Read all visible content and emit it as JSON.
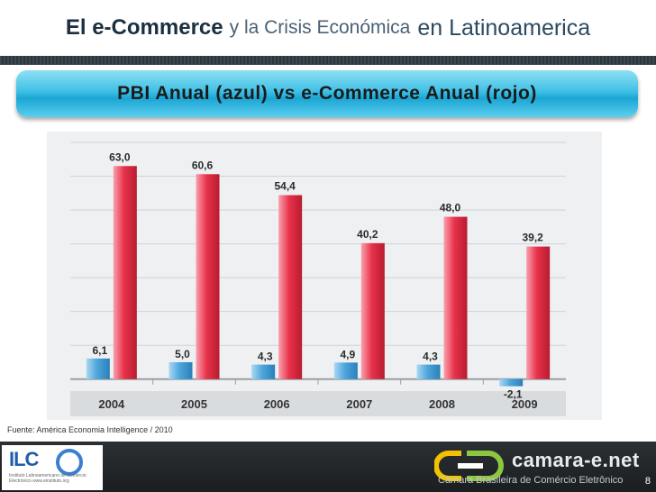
{
  "slide": {
    "title_bold": "El e-Commerce",
    "title_mid": "y la Crisis Económica",
    "title_end": "en Latinoamerica",
    "banner": "PBI Anual (azul) vs e-Commerce Anual (rojo)",
    "source": "Fuente: América Economia Intelligence / 2010",
    "page_number": "8"
  },
  "logos": {
    "ilce_mark": "ILC",
    "ilce_subtitle": "Instituto Latinoamericano de Comercio Electrónico www.einstituto.org",
    "camara_name": "camara-e.net",
    "camara_subtitle": "Câmara Brasileira de Comércio Eletrônico"
  },
  "colors": {
    "gdp_bar": "#4ea6dc",
    "ecommerce_bar": "#e8324a",
    "banner": "#2fb6e0"
  },
  "chart_data": {
    "type": "bar",
    "categories": [
      "2004",
      "2005",
      "2006",
      "2007",
      "2008",
      "2009"
    ],
    "series": [
      {
        "values": [
          6.1,
          5.0,
          4.3,
          4.9,
          4.3,
          -2.1
        ],
        "labels": [
          "6,1",
          "5,0",
          "4,3",
          "4,9",
          "4,3",
          "-2,1"
        ]
      },
      {
        "values": [
          63.0,
          60.6,
          54.4,
          40.2,
          48.0,
          39.2
        ],
        "labels": [
          "63,0",
          "60,6",
          "54,4",
          "40,2",
          "48,0",
          "39,2"
        ]
      }
    ],
    "ylim": [
      -3,
      70
    ],
    "grid": true
  }
}
